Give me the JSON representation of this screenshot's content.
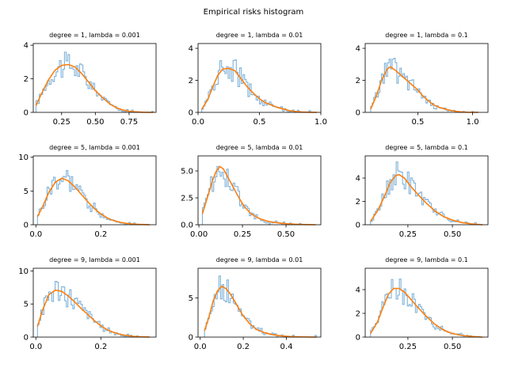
{
  "figure_title": "Empirical risks histogram",
  "colors": {
    "hist": "#7fb2d9",
    "kde": "#ff7f0e",
    "axes": "#000000"
  },
  "chart_data": [
    {
      "type": "histogram+line",
      "title": "degree = 1, lambda = 0.001",
      "xlim": [
        0.04,
        0.95
      ],
      "ylim": [
        0,
        4.1
      ],
      "xticks": [
        0.25,
        0.5,
        0.75
      ],
      "xtick_labels": [
        "0.25",
        "0.50",
        "0.75"
      ],
      "yticks": [
        0,
        2,
        4
      ],
      "ytick_labels": [
        "0",
        "2",
        "4"
      ],
      "kde": {
        "x": [
          0.06,
          0.1,
          0.15,
          0.2,
          0.25,
          0.3,
          0.35,
          0.4,
          0.45,
          0.5,
          0.55,
          0.6,
          0.65,
          0.7,
          0.75,
          0.8,
          0.85,
          0.93
        ],
        "y": [
          0.4,
          1.1,
          1.9,
          2.5,
          2.8,
          2.85,
          2.7,
          2.3,
          1.8,
          1.3,
          0.9,
          0.55,
          0.3,
          0.15,
          0.07,
          0.03,
          0.01,
          0.0
        ]
      }
    },
    {
      "type": "histogram+line",
      "title": "degree = 1, lambda = 0.01",
      "xlim": [
        0.0,
        1.0
      ],
      "ylim": [
        0,
        4.3
      ],
      "xticks": [
        0.0,
        0.5,
        1.0
      ],
      "xtick_labels": [
        "0.0",
        "0.5",
        "1.0"
      ],
      "yticks": [
        0,
        2,
        4
      ],
      "ytick_labels": [
        "0",
        "2",
        "4"
      ],
      "kde": {
        "x": [
          0.03,
          0.08,
          0.12,
          0.16,
          0.2,
          0.25,
          0.3,
          0.35,
          0.4,
          0.45,
          0.5,
          0.55,
          0.6,
          0.65,
          0.7,
          0.75,
          0.8,
          0.85,
          0.9,
          0.97
        ],
        "y": [
          0.2,
          0.8,
          1.6,
          2.3,
          2.7,
          2.75,
          2.6,
          2.1,
          1.6,
          1.2,
          0.85,
          0.6,
          0.45,
          0.3,
          0.2,
          0.1,
          0.05,
          0.02,
          0.01,
          0.0
        ]
      }
    },
    {
      "type": "histogram+line",
      "title": "degree = 1, lambda = 0.1",
      "xlim": [
        0.02,
        1.14
      ],
      "ylim": [
        0,
        4.3
      ],
      "xticks": [
        0.5,
        1.0
      ],
      "xtick_labels": [
        "0.5",
        "1.0"
      ],
      "yticks": [
        0,
        2,
        4
      ],
      "ytick_labels": [
        "0",
        "2",
        "4"
      ],
      "kde": {
        "x": [
          0.07,
          0.12,
          0.17,
          0.22,
          0.25,
          0.3,
          0.35,
          0.4,
          0.45,
          0.5,
          0.55,
          0.6,
          0.65,
          0.7,
          0.75,
          0.8,
          0.85,
          0.9,
          0.95,
          1.05
        ],
        "y": [
          0.2,
          1.0,
          2.0,
          2.7,
          2.85,
          2.6,
          2.3,
          2.0,
          1.7,
          1.4,
          1.0,
          0.7,
          0.45,
          0.3,
          0.2,
          0.12,
          0.06,
          0.03,
          0.01,
          0.0
        ]
      }
    },
    {
      "type": "histogram+line",
      "title": "degree = 5, lambda = 0.001",
      "xlim": [
        -0.008,
        0.37
      ],
      "ylim": [
        0,
        10.2
      ],
      "xticks": [
        0.0,
        0.2
      ],
      "xtick_labels": [
        "0.0",
        "0.2"
      ],
      "yticks": [
        0,
        5,
        10
      ],
      "ytick_labels": [
        "0",
        "5",
        "10"
      ],
      "kde": {
        "x": [
          0.005,
          0.02,
          0.04,
          0.06,
          0.08,
          0.1,
          0.12,
          0.14,
          0.16,
          0.18,
          0.2,
          0.22,
          0.24,
          0.26,
          0.28,
          0.3,
          0.32,
          0.35
        ],
        "y": [
          1.2,
          2.6,
          4.8,
          6.3,
          6.9,
          6.5,
          5.6,
          4.5,
          3.4,
          2.4,
          1.6,
          1.0,
          0.6,
          0.35,
          0.2,
          0.1,
          0.05,
          0.01
        ]
      }
    },
    {
      "type": "histogram+line",
      "title": "degree = 5, lambda = 0.01",
      "xlim": [
        -0.005,
        0.7
      ],
      "ylim": [
        0,
        6.4
      ],
      "xticks": [
        0.0,
        0.25,
        0.5
      ],
      "xtick_labels": [
        "0.00",
        "0.25",
        "0.50"
      ],
      "yticks": [
        0,
        2.5,
        5.0
      ],
      "ytick_labels": [
        "0.0",
        "2.5",
        "5.0"
      ],
      "kde": {
        "x": [
          0.02,
          0.05,
          0.08,
          0.1,
          0.12,
          0.14,
          0.17,
          0.2,
          0.23,
          0.26,
          0.3,
          0.35,
          0.4,
          0.45,
          0.5,
          0.55,
          0.6,
          0.67
        ],
        "y": [
          1.0,
          2.6,
          4.2,
          5.0,
          5.4,
          5.2,
          4.3,
          3.4,
          2.5,
          1.7,
          1.0,
          0.55,
          0.3,
          0.18,
          0.1,
          0.05,
          0.02,
          0.0
        ]
      }
    },
    {
      "type": "histogram+line",
      "title": "degree = 5, lambda = 0.1",
      "xlim": [
        0.01,
        0.7
      ],
      "ylim": [
        0,
        5.9
      ],
      "xticks": [
        0.25,
        0.5
      ],
      "xtick_labels": [
        "0.25",
        "0.50"
      ],
      "yticks": [
        0,
        2,
        4
      ],
      "ytick_labels": [
        "0",
        "2",
        "4"
      ],
      "kde": {
        "x": [
          0.04,
          0.08,
          0.12,
          0.15,
          0.18,
          0.2,
          0.23,
          0.26,
          0.3,
          0.35,
          0.4,
          0.45,
          0.5,
          0.55,
          0.6,
          0.67
        ],
        "y": [
          0.3,
          1.2,
          2.5,
          3.6,
          4.2,
          4.3,
          4.0,
          3.4,
          2.7,
          1.9,
          1.2,
          0.7,
          0.4,
          0.2,
          0.08,
          0.0
        ]
      }
    },
    {
      "type": "histogram+line",
      "title": "degree = 9, lambda = 0.001",
      "xlim": [
        -0.008,
        0.37
      ],
      "ylim": [
        0,
        10.4
      ],
      "xticks": [
        0.0,
        0.2
      ],
      "xtick_labels": [
        "0.0",
        "0.2"
      ],
      "yticks": [
        0,
        5,
        10
      ],
      "ytick_labels": [
        "0",
        "5",
        "10"
      ],
      "kde": {
        "x": [
          0.005,
          0.02,
          0.04,
          0.06,
          0.08,
          0.1,
          0.12,
          0.14,
          0.16,
          0.18,
          0.2,
          0.22,
          0.24,
          0.26,
          0.28,
          0.3,
          0.32,
          0.35
        ],
        "y": [
          1.6,
          4.0,
          6.4,
          7.1,
          6.9,
          6.2,
          5.3,
          4.3,
          3.4,
          2.5,
          1.7,
          1.1,
          0.7,
          0.4,
          0.25,
          0.12,
          0.06,
          0.01
        ]
      }
    },
    {
      "type": "histogram+line",
      "title": "degree = 9, lambda = 0.01",
      "xlim": [
        -0.01,
        0.56
      ],
      "ylim": [
        0,
        8.8
      ],
      "xticks": [
        0.0,
        0.2,
        0.4
      ],
      "xtick_labels": [
        "0.0",
        "0.2",
        "0.4"
      ],
      "yticks": [
        0,
        5
      ],
      "ytick_labels": [
        "0",
        "5"
      ],
      "kde": {
        "x": [
          0.02,
          0.04,
          0.06,
          0.08,
          0.1,
          0.12,
          0.14,
          0.16,
          0.18,
          0.2,
          0.23,
          0.26,
          0.3,
          0.34,
          0.38,
          0.42,
          0.46,
          0.54
        ],
        "y": [
          0.8,
          2.5,
          4.6,
          5.9,
          6.5,
          6.2,
          5.5,
          4.6,
          3.6,
          2.7,
          1.7,
          1.0,
          0.55,
          0.3,
          0.15,
          0.07,
          0.03,
          0.0
        ]
      }
    },
    {
      "type": "histogram+line",
      "title": "degree = 9, lambda = 0.1",
      "xlim": [
        0.01,
        0.7
      ],
      "ylim": [
        0,
        5.8
      ],
      "xticks": [
        0.25,
        0.5
      ],
      "xtick_labels": [
        "0.25",
        "0.50"
      ],
      "yticks": [
        0,
        2,
        4
      ],
      "ytick_labels": [
        "0",
        "2",
        "4"
      ],
      "kde": {
        "x": [
          0.04,
          0.08,
          0.11,
          0.14,
          0.17,
          0.2,
          0.23,
          0.26,
          0.3,
          0.35,
          0.4,
          0.45,
          0.5,
          0.55,
          0.6,
          0.67
        ],
        "y": [
          0.3,
          1.3,
          2.5,
          3.6,
          4.1,
          4.1,
          3.8,
          3.3,
          2.6,
          1.8,
          1.1,
          0.6,
          0.3,
          0.15,
          0.06,
          0.0
        ]
      }
    }
  ]
}
